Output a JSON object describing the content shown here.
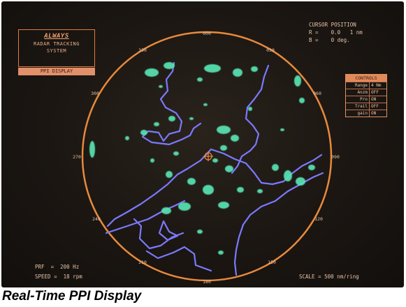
{
  "caption": "Real-Time PPI Display",
  "logo": {
    "brand": "ALWAYS",
    "line1": "RADAR TRACKING",
    "line2": "SYSTEM",
    "mode": "PPI DISPLAY"
  },
  "cursor": {
    "title": "CURSOR POSITION",
    "range_line": "R =    0.0   1 nm",
    "bearing_line": "B =    0 deg."
  },
  "controls": {
    "title": "CONTROLS",
    "rows": [
      {
        "name": "Range",
        "value": "4 Nm"
      },
      {
        "name": "Anzm",
        "value": "OFF"
      },
      {
        "name": "Pro",
        "value": "ON"
      },
      {
        "name": "Trail",
        "value": "OFF"
      },
      {
        "name": "gain",
        "value": "ON"
      }
    ]
  },
  "bearing_labels": [
    "000",
    "030",
    "060",
    "090",
    "120",
    "150",
    "180",
    "210",
    "240",
    "270",
    "300",
    "330"
  ],
  "status": {
    "prf": "PRF  =  200 Hz",
    "speed": "SPEED =  18 rpm",
    "scale": "SCALE = 500 nm/ring"
  },
  "colors": {
    "ring": "#e88a3c",
    "coast": "#7a7aff",
    "echo": "#59e4b4",
    "text": "#e6c4a8"
  }
}
